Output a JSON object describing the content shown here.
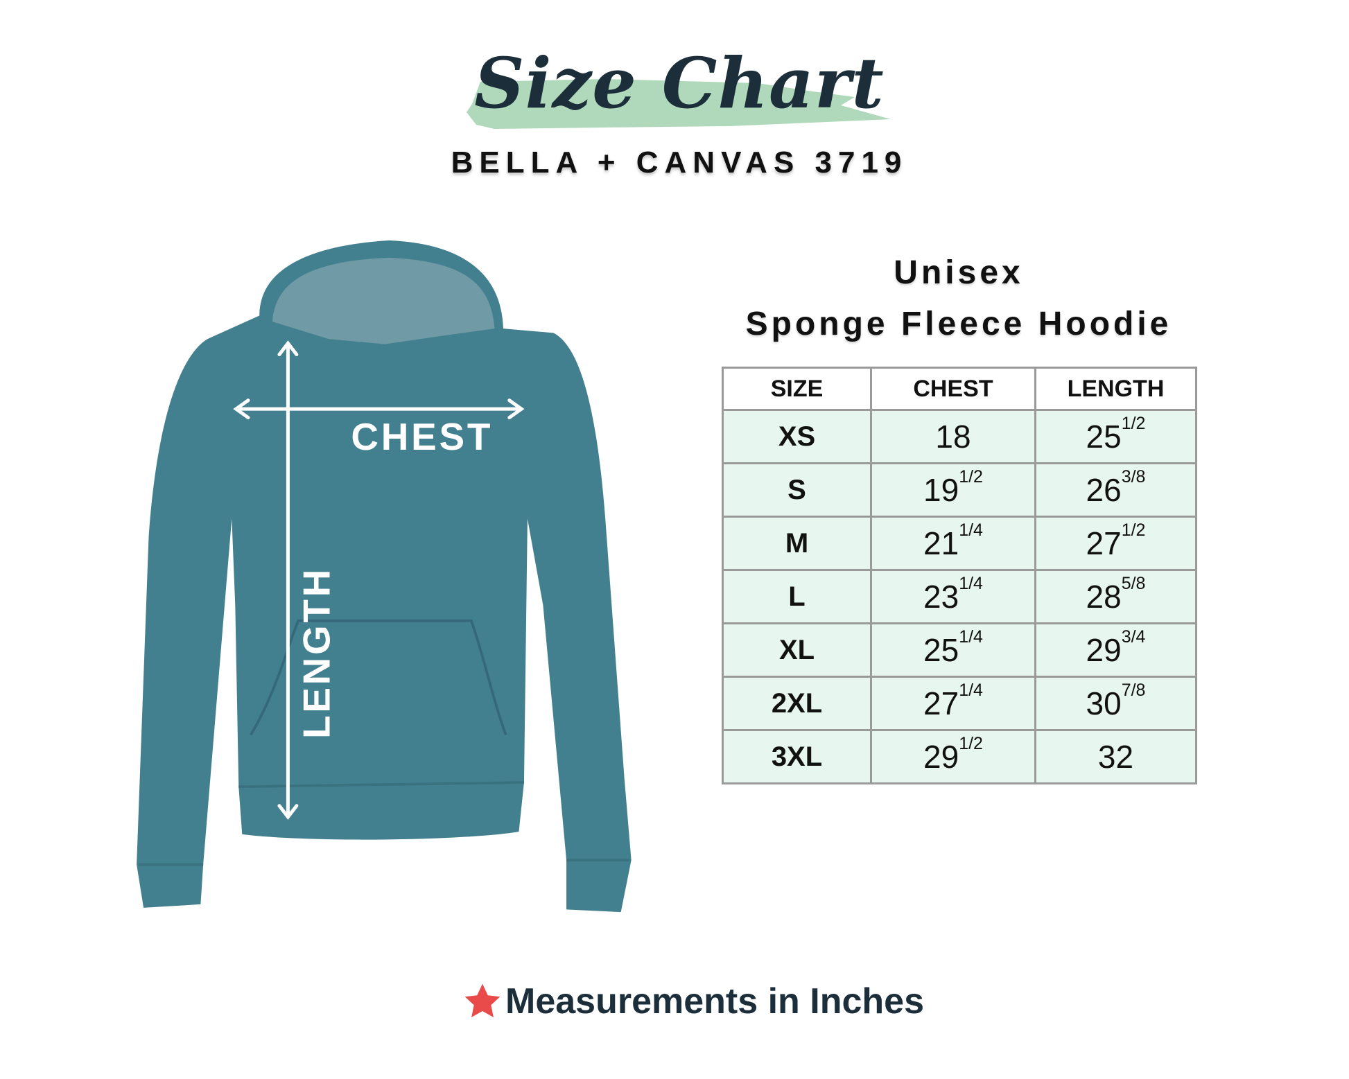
{
  "header": {
    "title": "Size Chart",
    "subtitle": "BELLA + CANVAS 3719"
  },
  "colors": {
    "brush": "#b0d9bc",
    "title": "#1c2e3a",
    "hoodie": "#43808f",
    "table_row_bg": "#e7f6ee",
    "star": "#e94b4b"
  },
  "diagram": {
    "chest_label": "CHEST",
    "length_label": "LENGTH"
  },
  "product": {
    "line1": "Unisex",
    "line2": "Sponge Fleece Hoodie"
  },
  "table": {
    "headers": [
      "SIZE",
      "CHEST",
      "LENGTH"
    ],
    "rows": [
      {
        "size": "XS",
        "chest": "18",
        "chest_frac": "",
        "length": "25",
        "length_frac": "1/2"
      },
      {
        "size": "S",
        "chest": "19",
        "chest_frac": "1/2",
        "length": "26",
        "length_frac": "3/8"
      },
      {
        "size": "M",
        "chest": "21",
        "chest_frac": "1/4",
        "length": "27",
        "length_frac": "1/2"
      },
      {
        "size": "L",
        "chest": "23",
        "chest_frac": "1/4",
        "length": "28",
        "length_frac": "5/8"
      },
      {
        "size": "XL",
        "chest": "25",
        "chest_frac": "1/4",
        "length": "29",
        "length_frac": "3/4"
      },
      {
        "size": "2XL",
        "chest": "27",
        "chest_frac": "1/4",
        "length": "30",
        "length_frac": "7/8"
      },
      {
        "size": "3XL",
        "chest": "29",
        "chest_frac": "1/2",
        "length": "32",
        "length_frac": ""
      }
    ]
  },
  "footer": {
    "icon": "star-icon",
    "text": "Measurements in Inches"
  }
}
